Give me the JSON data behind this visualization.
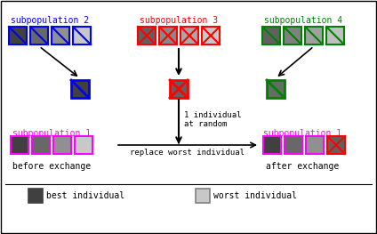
{
  "bg_color": "#ffffff",
  "border_color": "#000000",
  "colors": {
    "blue": "#0000ff",
    "red": "#ff0000",
    "green": "#008000",
    "magenta": "#ff00ff",
    "black": "#000000",
    "white": "#ffffff",
    "dark_gray": "#404040",
    "gray2": "#606060",
    "gray3": "#909090",
    "light_gray": "#c0c0c0",
    "red_dark": "#8b0000",
    "green_dark": "#556655"
  },
  "subpop2_label": "subpopulation 2",
  "subpop3_label": "subpopulation 3",
  "subpop4_label": "subpopulation 4",
  "subpop1_before_label": "subpopulation 1",
  "subpop1_after_label": "subpopulation 1",
  "before_exchange": "before exchange",
  "after_exchange": "after exchange",
  "text_1individual": "1 individual\nat random",
  "text_replace": "replace worst individual",
  "legend_best": "best individual",
  "legend_worst": "worst individual",
  "subpop2_squares_fill": [
    "#404040",
    "#686868",
    "#909090",
    "#c8c8c8"
  ],
  "subpop3_squares_fill": [
    "#606060",
    "#888888",
    "#a8a8a8",
    "#c8c8c8"
  ],
  "subpop4_squares_fill": [
    "#606060",
    "#808080",
    "#a0a0a0",
    "#c0c0c0"
  ],
  "subpop1_before_fill": [
    "#404040",
    "#686868",
    "#909090",
    "#c8c8c8"
  ],
  "subpop1_after_fill": [
    "#404040",
    "#686868",
    "#909090"
  ],
  "mid_blue_fill": "#404040",
  "mid_red_fill": "#606060",
  "mid_green_fill": "#607060"
}
